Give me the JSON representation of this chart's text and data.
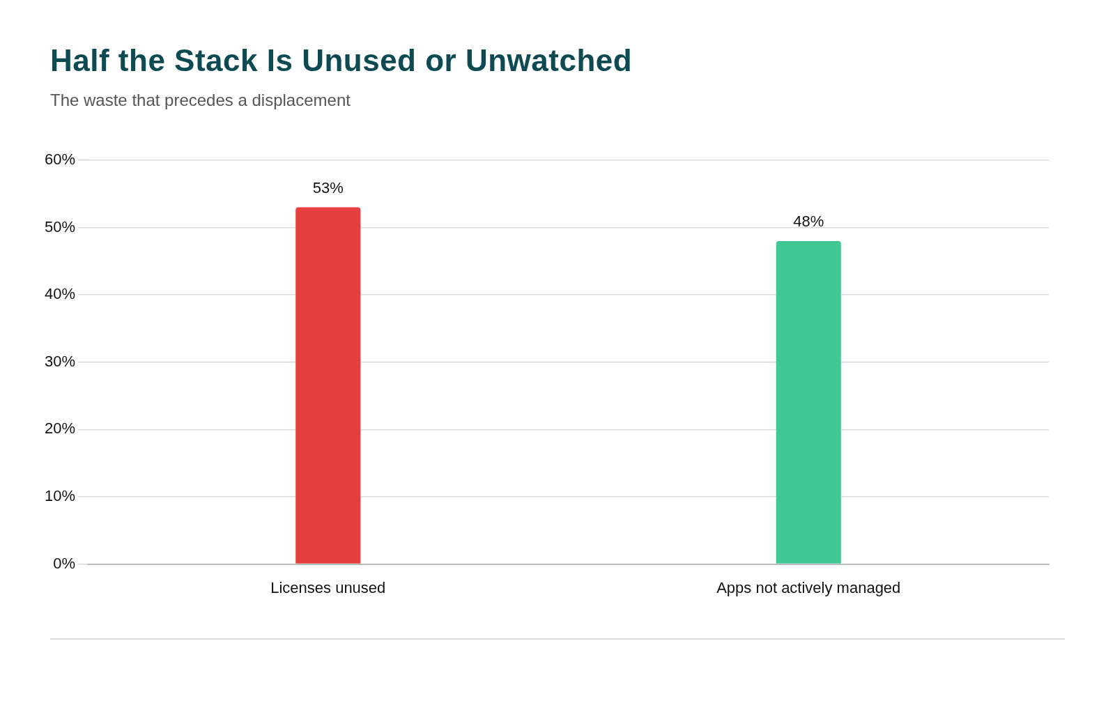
{
  "chart_data": {
    "type": "bar",
    "title": "Half the Stack Is Unused or Unwatched",
    "subtitle": "The waste that precedes a displacement",
    "categories": [
      "Licenses unused",
      "Apps not actively managed"
    ],
    "values": [
      53,
      48
    ],
    "colors": [
      "#e53e3e",
      "#40c793"
    ],
    "ylim": [
      0,
      60
    ],
    "yticks": [
      {
        "value": 0,
        "label": "0%"
      },
      {
        "value": 10,
        "label": "10%"
      },
      {
        "value": 20,
        "label": "20%"
      },
      {
        "value": 30,
        "label": "30%"
      },
      {
        "value": 40,
        "label": "40%"
      },
      {
        "value": 50,
        "label": "50%"
      },
      {
        "value": 60,
        "label": "60%"
      }
    ],
    "grid": "y",
    "data_labels": true,
    "value_labels": [
      "53%",
      "48%"
    ],
    "legend": false
  }
}
